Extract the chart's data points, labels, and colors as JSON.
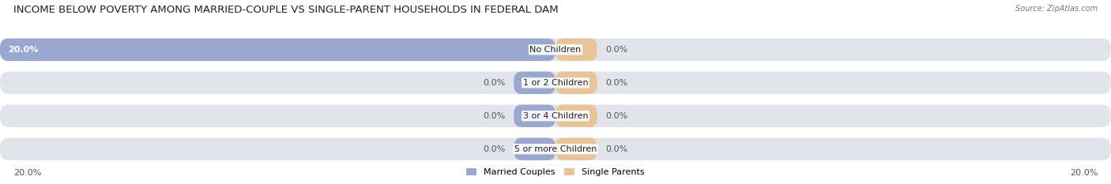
{
  "title": "INCOME BELOW POVERTY AMONG MARRIED-COUPLE VS SINGLE-PARENT HOUSEHOLDS IN FEDERAL DAM",
  "source": "Source: ZipAtlas.com",
  "categories": [
    "No Children",
    "1 or 2 Children",
    "3 or 4 Children",
    "5 or more Children"
  ],
  "married_values": [
    20.0,
    0.0,
    0.0,
    0.0
  ],
  "single_values": [
    0.0,
    0.0,
    0.0,
    0.0
  ],
  "married_color": "#9aa8d0",
  "single_color": "#e8c49a",
  "row_bg_color": "#e2e4ec",
  "title_fontsize": 9.5,
  "label_fontsize": 8.0,
  "value_fontsize": 8.0,
  "axis_max": 20.0,
  "legend_married": "Married Couples",
  "legend_single": "Single Parents",
  "bottom_left_label": "20.0%",
  "bottom_right_label": "20.0%",
  "stub_size": 1.5
}
